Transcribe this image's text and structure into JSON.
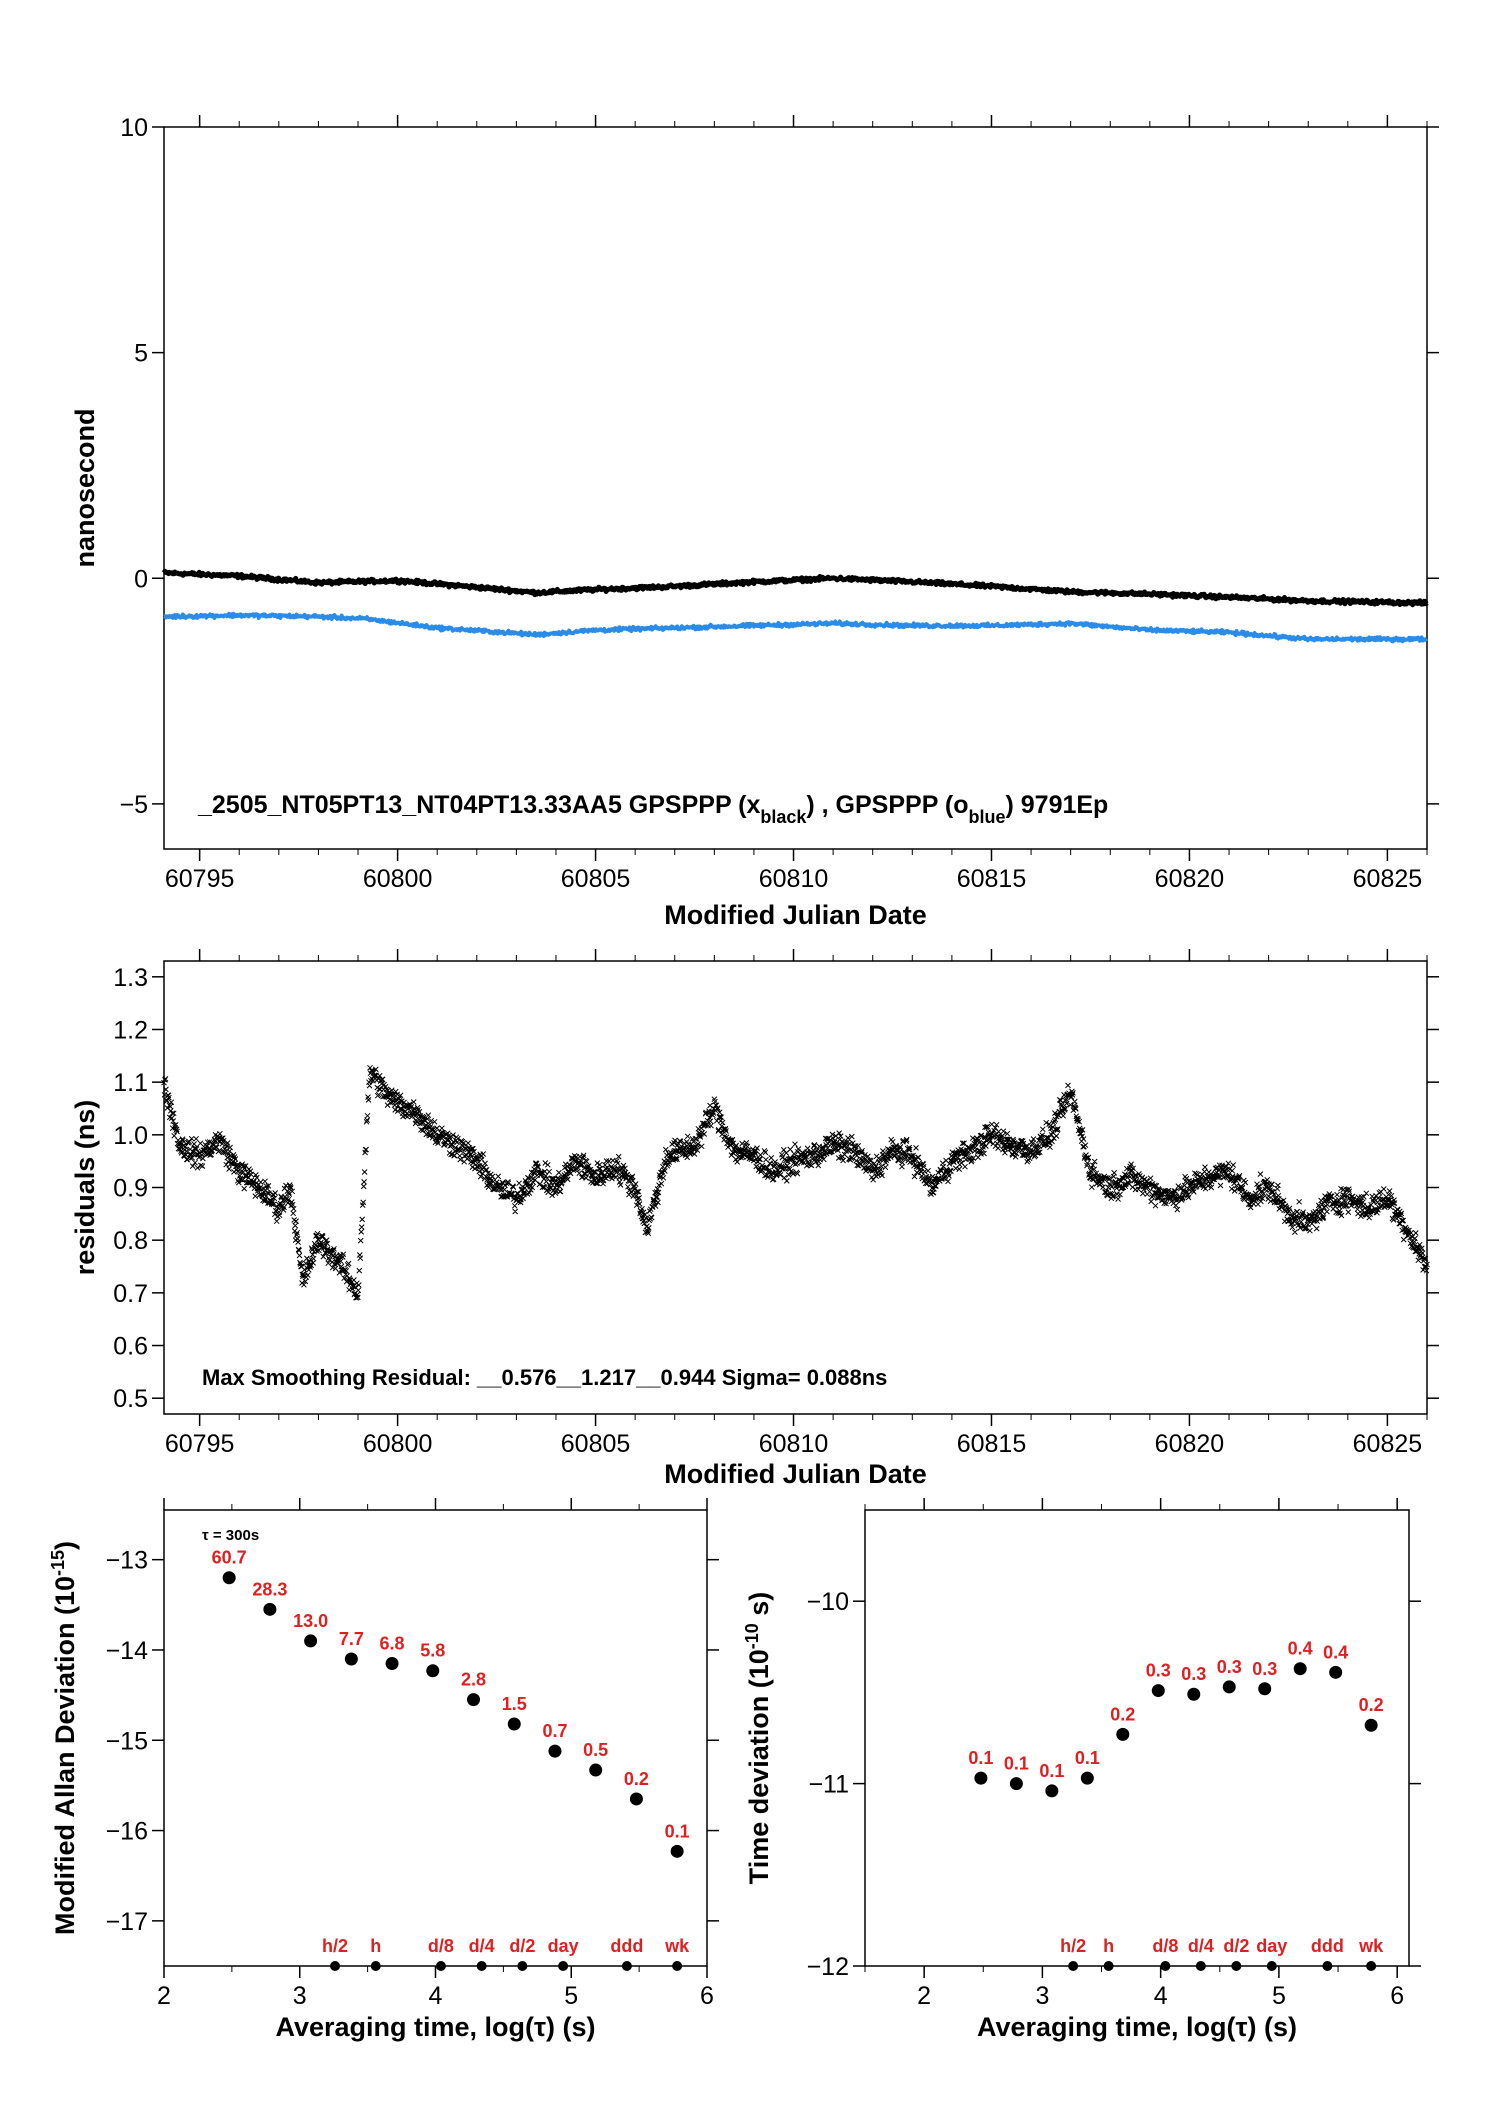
{
  "chart_data": [
    {
      "type": "line",
      "ylabel": "nanosecond",
      "xlabel": "Modified Julian Date",
      "xlim": [
        60794.1,
        60826.0
      ],
      "ylim": [
        -6,
        10
      ],
      "yticks": [
        10,
        5,
        0,
        -5
      ],
      "yticks_display": [
        "10",
        "5",
        "0",
        "−5"
      ],
      "xticks": [
        60795,
        60800,
        60805,
        60810,
        60815,
        60820,
        60825
      ],
      "annotation": {
        "prefix": "_2505_NT05PT13_NT04PT13.33AA5     GPSPPP (x",
        "sub1": "black",
        "mid": ") ,  GPSPPP (o",
        "sub2": "blue",
        "suffix": ")  9791Ep"
      },
      "series": [
        {
          "color": "#000000",
          "x": [
            60794.1,
            60796,
            60798,
            60800,
            60802,
            60803.5,
            60805,
            60807,
            60809,
            60811,
            60813,
            60815,
            60817,
            60819,
            60821,
            60823,
            60826.0
          ],
          "y": [
            0.12,
            0.05,
            -0.1,
            -0.05,
            -0.2,
            -0.32,
            -0.25,
            -0.18,
            -0.08,
            0.0,
            -0.08,
            -0.18,
            -0.3,
            -0.35,
            -0.42,
            -0.5,
            -0.55
          ]
        },
        {
          "color": "#2a8ce8",
          "x": [
            60794.1,
            60796,
            60798,
            60799.2,
            60801,
            60803.5,
            60805,
            60807,
            60809,
            60811,
            60813,
            60815,
            60817,
            60819,
            60821,
            60823,
            60826.0
          ],
          "y": [
            -0.85,
            -0.82,
            -0.85,
            -0.9,
            -1.1,
            -1.25,
            -1.15,
            -1.1,
            -1.05,
            -1.0,
            -1.05,
            -1.05,
            -1.0,
            -1.15,
            -1.2,
            -1.35,
            -1.35
          ]
        }
      ]
    },
    {
      "type": "scatter",
      "ylabel": "residuals (ns)",
      "xlabel": "Modified Julian Date",
      "xlim": [
        60794.1,
        60826.0
      ],
      "ylim": [
        0.47,
        1.33
      ],
      "yticks": [
        1.3,
        1.2,
        1.1,
        1.0,
        0.9,
        0.8,
        0.7,
        0.6,
        0.5
      ],
      "yticks_display": [
        "1.3",
        "1.2",
        "1.1",
        "1.0",
        "0.9",
        "0.8",
        "0.7",
        "0.6",
        "0.5"
      ],
      "xticks": [
        60795,
        60800,
        60805,
        60810,
        60815,
        60820,
        60825
      ],
      "annotation": "Max Smoothing Residual: __0.576__1.217__0.944  Sigma= 0.088ns",
      "series": [
        {
          "marker": "x",
          "color": "#000000",
          "x": [
            60794.1,
            60794.5,
            60795.0,
            60795.5,
            60796.0,
            60796.5,
            60797.0,
            60797.3,
            60797.6,
            60798.0,
            60798.5,
            60799.0,
            60799.3,
            60799.8,
            60800.5,
            60801.0,
            60801.5,
            60802.0,
            60802.5,
            60803.0,
            60803.5,
            60804.0,
            60804.5,
            60805.0,
            60805.5,
            60806.0,
            60806.3,
            60806.8,
            60807.5,
            60808.0,
            60808.5,
            60809.0,
            60809.5,
            60810.0,
            60810.5,
            60811.0,
            60811.5,
            60812.0,
            60812.5,
            60813.0,
            60813.5,
            60814.0,
            60814.5,
            60815.0,
            60815.5,
            60816.0,
            60816.5,
            60817.0,
            60817.5,
            60818.0,
            60818.5,
            60819.0,
            60819.5,
            60820.0,
            60820.5,
            60821.0,
            60821.5,
            60822.0,
            60822.5,
            60823.0,
            60823.5,
            60824.0,
            60824.5,
            60825.0,
            60825.5,
            60826.0
          ],
          "y": [
            1.1,
            0.98,
            0.96,
            0.99,
            0.93,
            0.9,
            0.86,
            0.9,
            0.72,
            0.8,
            0.76,
            0.7,
            1.12,
            1.07,
            1.04,
            1.0,
            0.98,
            0.95,
            0.9,
            0.88,
            0.93,
            0.9,
            0.95,
            0.92,
            0.94,
            0.9,
            0.82,
            0.96,
            0.98,
            1.05,
            0.97,
            0.96,
            0.93,
            0.95,
            0.96,
            0.98,
            0.97,
            0.93,
            0.97,
            0.96,
            0.9,
            0.95,
            0.97,
            1.0,
            0.98,
            0.97,
            1.0,
            1.08,
            0.93,
            0.9,
            0.92,
            0.9,
            0.88,
            0.9,
            0.92,
            0.93,
            0.88,
            0.9,
            0.85,
            0.83,
            0.87,
            0.88,
            0.86,
            0.88,
            0.82,
            0.75
          ]
        }
      ]
    },
    {
      "type": "scatter",
      "ylabel": "Modified Allan Deviation (10",
      "ylabel_sup": "-15",
      "ylabel_end": ")",
      "xlabel": "Averaging time, log(τ) (s)",
      "xlim": [
        2,
        6
      ],
      "ylim": [
        -17.5,
        -12.45
      ],
      "yticks": [
        -13,
        -14,
        -15,
        -16,
        -17
      ],
      "yticks_display": [
        "−13",
        "−14",
        "−15",
        "−16",
        "−17"
      ],
      "xticks": [
        2,
        3,
        4,
        5,
        6
      ],
      "tau_note": "τ = 300s",
      "x": [
        2.48,
        2.78,
        3.08,
        3.38,
        3.68,
        3.98,
        4.28,
        4.58,
        4.88,
        5.18,
        5.48,
        5.78
      ],
      "values": [
        -13.2,
        -13.55,
        -13.9,
        -14.1,
        -14.15,
        -14.23,
        -14.55,
        -14.82,
        -15.12,
        -15.33,
        -15.65,
        -16.23
      ],
      "point_labels": [
        "60.7",
        "28.3",
        "13.0",
        "7.7",
        "6.8",
        "5.8",
        "2.8",
        "1.5",
        "0.7",
        "0.5",
        "0.2",
        "0.1"
      ],
      "markers": [
        {
          "label": "h/2",
          "x": 3.26
        },
        {
          "label": "h",
          "x": 3.56
        },
        {
          "label": "d/8",
          "x": 4.04
        },
        {
          "label": "d/4",
          "x": 4.34
        },
        {
          "label": "d/2",
          "x": 4.64
        },
        {
          "label": "day",
          "x": 4.94
        },
        {
          "label": "ddd",
          "x": 5.41
        },
        {
          "label": "wk",
          "x": 5.78
        }
      ]
    },
    {
      "type": "scatter",
      "ylabel": "Time deviation (10",
      "ylabel_sup": "-10",
      "ylabel_end": " s)",
      "xlabel": "Averaging time, log(τ) (s)",
      "xlim": [
        1.5,
        6.1
      ],
      "ylim": [
        -12,
        -9.5
      ],
      "yticks": [
        -10,
        -11,
        -12
      ],
      "yticks_display": [
        "−10",
        "−11",
        "−12"
      ],
      "xticks": [
        2,
        3,
        4,
        5,
        6
      ],
      "x": [
        2.48,
        2.78,
        3.08,
        3.38,
        3.68,
        3.98,
        4.28,
        4.58,
        4.88,
        5.18,
        5.48,
        5.78
      ],
      "values": [
        -10.97,
        -11.0,
        -11.04,
        -10.97,
        -10.73,
        -10.49,
        -10.51,
        -10.47,
        -10.48,
        -10.37,
        -10.39,
        -10.68
      ],
      "point_labels": [
        "0.1",
        "0.1",
        "0.1",
        "0.1",
        "0.2",
        "0.3",
        "0.3",
        "0.3",
        "0.3",
        "0.4",
        "0.4",
        "0.2"
      ],
      "markers": [
        {
          "label": "h/2",
          "x": 3.26
        },
        {
          "label": "h",
          "x": 3.56
        },
        {
          "label": "d/8",
          "x": 4.04
        },
        {
          "label": "d/4",
          "x": 4.34
        },
        {
          "label": "d/2",
          "x": 4.64
        },
        {
          "label": "day",
          "x": 4.94
        },
        {
          "label": "ddd",
          "x": 5.41
        },
        {
          "label": "wk",
          "x": 5.78
        }
      ]
    }
  ]
}
